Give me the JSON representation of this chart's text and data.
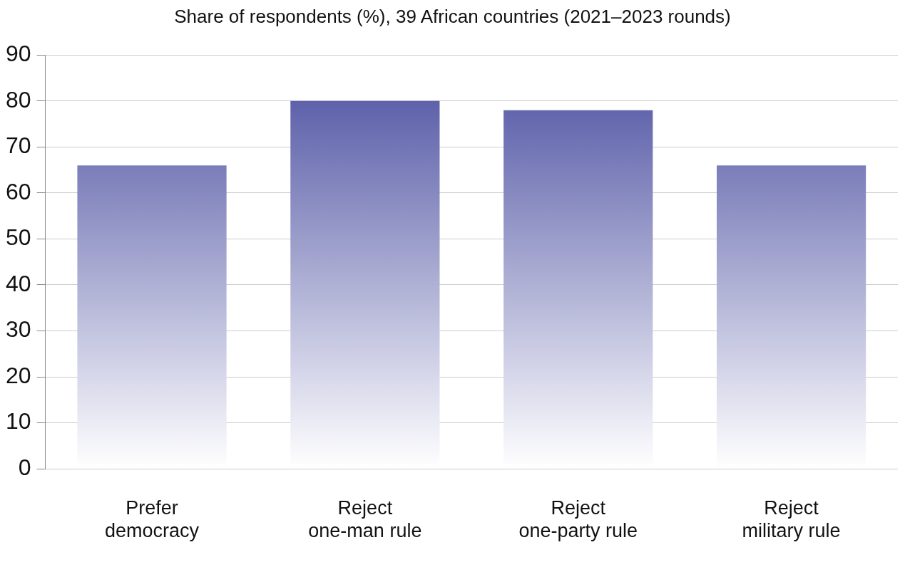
{
  "chart_data": {
    "type": "bar",
    "title": "Share of respondents (%), 39 African countries (2021–2023 rounds)",
    "categories": [
      "Prefer democracy",
      "Reject one-man rule",
      "Reject one-party rule",
      "Reject military rule"
    ],
    "values": [
      66,
      80,
      78,
      66
    ],
    "color": "#4a4ea0",
    "ylim": [
      0,
      90
    ],
    "yticks": [
      0,
      10,
      20,
      30,
      40,
      50,
      60,
      70,
      80,
      90
    ],
    "grid": "y"
  }
}
